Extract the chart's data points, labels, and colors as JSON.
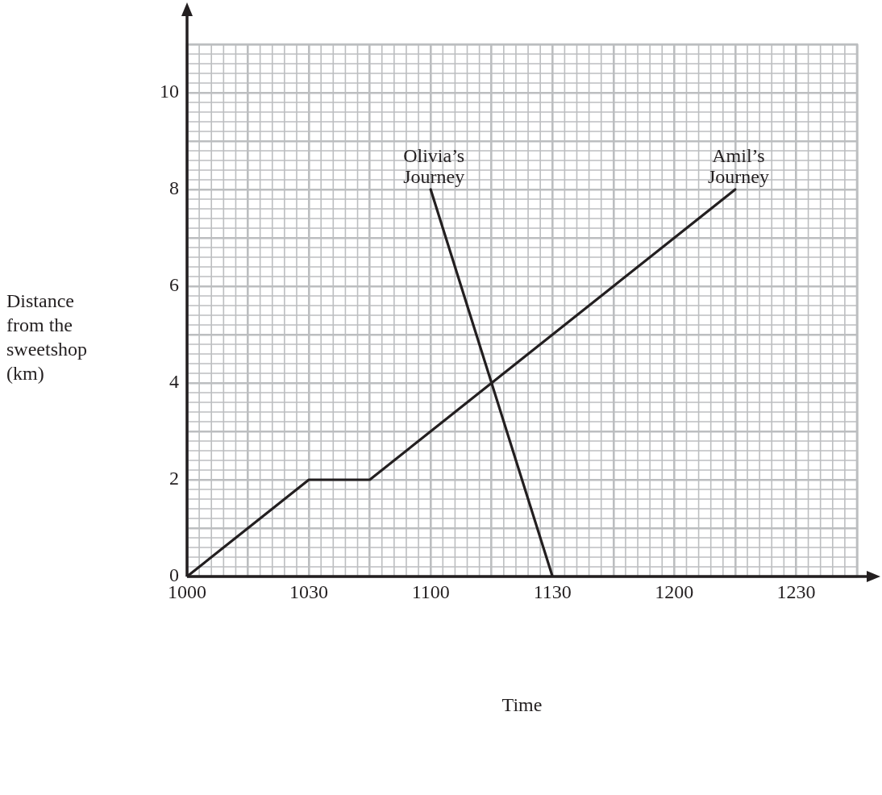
{
  "chart_data": {
    "type": "line",
    "xlabel": "Time",
    "ylabel": "Distance from the sweetshop (km)",
    "categories": [
      "1000",
      null,
      "1030",
      null,
      "1100",
      null,
      "1130",
      null,
      "1200",
      null,
      "1230",
      null
    ],
    "ylim": [
      0,
      11
    ],
    "yticks": [
      0,
      {
        "value": 1,
        "label": null
      },
      2,
      {
        "value": 3,
        "label": null
      },
      4,
      {
        "value": 5,
        "label": null
      },
      6,
      {
        "value": 7,
        "label": null
      },
      8,
      {
        "value": 9,
        "label": null
      },
      10,
      {
        "value": 11,
        "label": null
      }
    ],
    "grid": true,
    "legend": false,
    "marker": "none",
    "line_style": "solid",
    "series": [
      {
        "name": "Olivia’s Journey",
        "color": "#231f20",
        "values": [
          null,
          null,
          null,
          null,
          8,
          4,
          0,
          null,
          null,
          null,
          null,
          null
        ]
      },
      {
        "name": "Amil’s Journey",
        "color": "#231f20",
        "values": [
          0,
          1,
          2,
          2,
          3,
          4,
          5,
          6,
          7,
          8,
          null,
          null
        ]
      }
    ]
  }
}
